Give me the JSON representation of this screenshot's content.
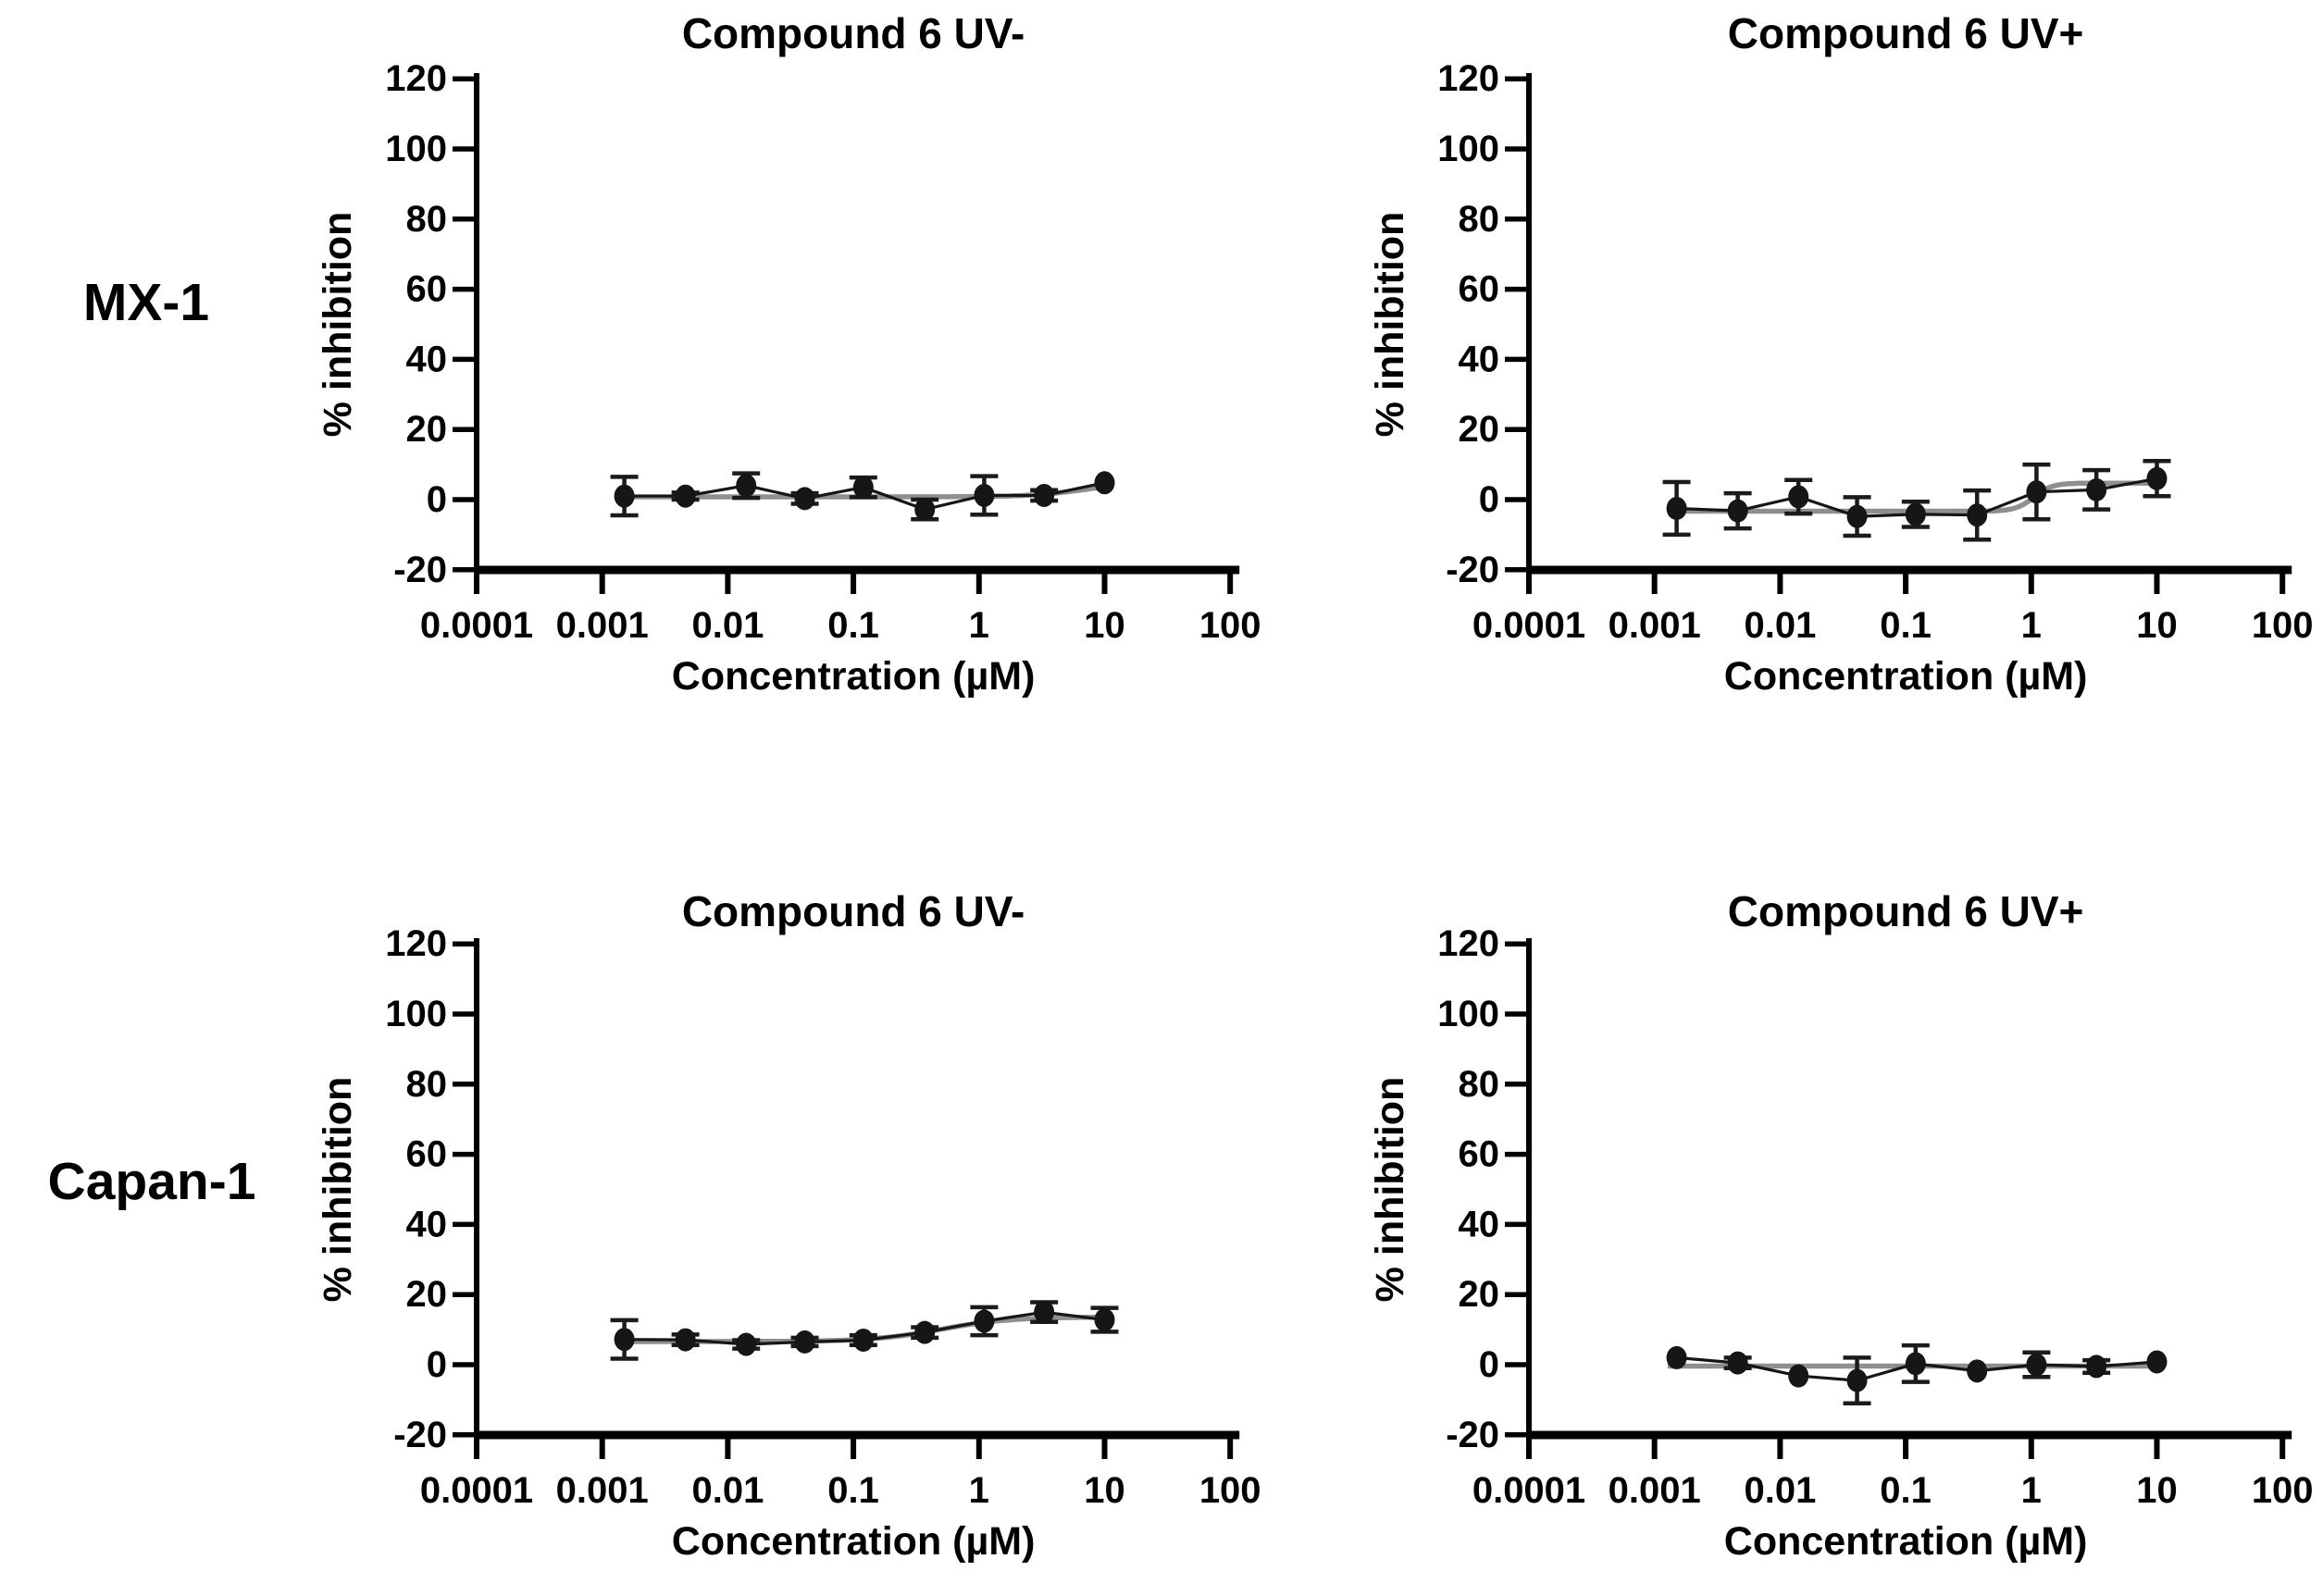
{
  "figure": {
    "background": "#ffffff",
    "description_texts": {
      "xlabel": "Concentration (µM)",
      "ylabel": "% inhibition"
    }
  },
  "row_labels": [
    "MX-1",
    "Capan-1"
  ],
  "colors": {
    "marker": "#161616",
    "error_bar": "#1b1b1b",
    "fit_line": "#8f8f8f",
    "connect_line": "#161616",
    "axis": "#000000",
    "text": "#000000",
    "background": "#ffffff"
  },
  "chart_data": [
    {
      "id": "mx1-uv-minus",
      "type": "scatter",
      "row_label": "MX-1",
      "title": "Compound 6 UV-",
      "xlabel": "Concentration (µM)",
      "ylabel": "% inhibition",
      "x_scale": "log",
      "xlim": [
        0.0001,
        100
      ],
      "ylim": [
        -20,
        120
      ],
      "x_ticks": [
        "0.0001",
        "0.001",
        "0.01",
        "0.1",
        "1",
        "10",
        "100"
      ],
      "y_ticks": [
        "-20",
        "0",
        "20",
        "40",
        "60",
        "80",
        "100",
        "120"
      ],
      "grid": false,
      "legend": "none",
      "x": [
        0.0015,
        0.0046,
        0.014,
        0.041,
        0.12,
        0.37,
        1.1,
        3.3,
        10
      ],
      "y": [
        1.0,
        1.0,
        4.0,
        0.3,
        3.5,
        -2.8,
        1.2,
        1.2,
        4.8
      ],
      "yerr": [
        5.5,
        1.0,
        3.5,
        1.5,
        2.8,
        2.8,
        5.5,
        1.5,
        0
      ],
      "fit": {
        "bottom": 0.8,
        "top": 5.0,
        "ec50_uM": 7,
        "hill": 2
      }
    },
    {
      "id": "mx1-uv-plus",
      "type": "scatter",
      "row_label": "MX-1",
      "title": "Compound 6 UV+",
      "xlabel": "Concentration (µM)",
      "ylabel": "% inhibition",
      "x_scale": "log",
      "xlim": [
        0.0001,
        100
      ],
      "ylim": [
        -20,
        120
      ],
      "x_ticks": [
        "0.0001",
        "0.001",
        "0.01",
        "0.1",
        "1",
        "10",
        "100"
      ],
      "y_ticks": [
        "-20",
        "0",
        "20",
        "40",
        "60",
        "80",
        "100",
        "120"
      ],
      "grid": false,
      "legend": "none",
      "x": [
        0.0015,
        0.0046,
        0.014,
        0.041,
        0.12,
        0.37,
        1.1,
        3.3,
        10
      ],
      "y": [
        -2.5,
        -3.2,
        0.8,
        -4.8,
        -4.2,
        -4.4,
        2.2,
        2.8,
        6.0
      ],
      "yerr": [
        7.5,
        5.0,
        4.8,
        5.5,
        3.6,
        7.0,
        7.8,
        5.6,
        5.0
      ],
      "fit": {
        "bottom": -3.3,
        "top": 4.7,
        "ec50_uM": 1.05,
        "hill": 6
      }
    },
    {
      "id": "capan1-uv-minus",
      "type": "scatter",
      "row_label": "Capan-1",
      "title": "Compound 6 UV-",
      "xlabel": "Concentration (µM)",
      "ylabel": "% inhibition",
      "x_scale": "log",
      "xlim": [
        0.0001,
        100
      ],
      "ylim": [
        -20,
        120
      ],
      "x_ticks": [
        "0.0001",
        "0.001",
        "0.01",
        "0.1",
        "1",
        "10",
        "100"
      ],
      "y_ticks": [
        "-20",
        "0",
        "20",
        "40",
        "60",
        "80",
        "100",
        "120"
      ],
      "grid": false,
      "legend": "none",
      "x": [
        0.0015,
        0.0046,
        0.014,
        0.041,
        0.12,
        0.37,
        1.1,
        3.3,
        10
      ],
      "y": [
        7.2,
        7.1,
        5.8,
        6.5,
        7.0,
        9.2,
        12.4,
        15.0,
        12.8
      ],
      "yerr": [
        5.5,
        1.5,
        1.2,
        1.2,
        1.4,
        1.5,
        4.0,
        2.8,
        3.4
      ],
      "fit": {
        "bottom": 6.6,
        "top": 13.6,
        "ec50_uM": 0.5,
        "hill": 1.6
      }
    },
    {
      "id": "capan1-uv-plus",
      "type": "scatter",
      "row_label": "Capan-1",
      "title": "Compound 6 UV+",
      "xlabel": "Concentration (µM)",
      "ylabel": "% inhibition",
      "x_scale": "log",
      "xlim": [
        0.0001,
        100
      ],
      "ylim": [
        -20,
        120
      ],
      "x_ticks": [
        "0.0001",
        "0.001",
        "0.01",
        "0.1",
        "1",
        "10",
        "100"
      ],
      "y_ticks": [
        "-20",
        "0",
        "20",
        "40",
        "60",
        "80",
        "100",
        "120"
      ],
      "grid": false,
      "legend": "none",
      "x": [
        0.0015,
        0.0046,
        0.014,
        0.041,
        0.12,
        0.37,
        1.1,
        3.3,
        10
      ],
      "y": [
        2.0,
        0.5,
        -3.2,
        -4.5,
        0.3,
        -1.8,
        0.0,
        -0.5,
        0.8
      ],
      "yerr": [
        0,
        1.5,
        0,
        6.5,
        5.2,
        0,
        3.5,
        1.8,
        0
      ],
      "fit": {
        "bottom": -0.4,
        "top": -0.4,
        "ec50_uM": 1,
        "hill": 1
      }
    }
  ]
}
